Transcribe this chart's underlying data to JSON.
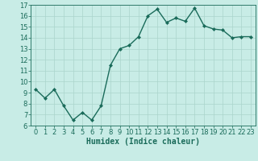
{
  "x": [
    0,
    1,
    2,
    3,
    4,
    5,
    6,
    7,
    8,
    9,
    10,
    11,
    12,
    13,
    14,
    15,
    16,
    17,
    18,
    19,
    20,
    21,
    22,
    23
  ],
  "y": [
    9.3,
    8.5,
    9.3,
    7.8,
    6.5,
    7.2,
    6.5,
    7.8,
    11.5,
    13.0,
    13.3,
    14.1,
    16.0,
    16.6,
    15.4,
    15.8,
    15.5,
    16.7,
    15.1,
    14.8,
    14.7,
    14.0,
    14.1,
    14.1
  ],
  "line_color": "#1a6b5a",
  "marker": "D",
  "marker_size": 2,
  "bg_color": "#c8ece6",
  "grid_color": "#aad4cc",
  "xlabel": "Humidex (Indice chaleur)",
  "xlim": [
    -0.5,
    23.5
  ],
  "ylim": [
    6,
    17
  ],
  "yticks": [
    6,
    7,
    8,
    9,
    10,
    11,
    12,
    13,
    14,
    15,
    16,
    17
  ],
  "xticks": [
    0,
    1,
    2,
    3,
    4,
    5,
    6,
    7,
    8,
    9,
    10,
    11,
    12,
    13,
    14,
    15,
    16,
    17,
    18,
    19,
    20,
    21,
    22,
    23
  ],
  "xlabel_color": "#1a6b5a",
  "tick_color": "#1a6b5a",
  "tick_fontsize": 6,
  "xlabel_fontsize": 7,
  "linewidth": 1.0
}
